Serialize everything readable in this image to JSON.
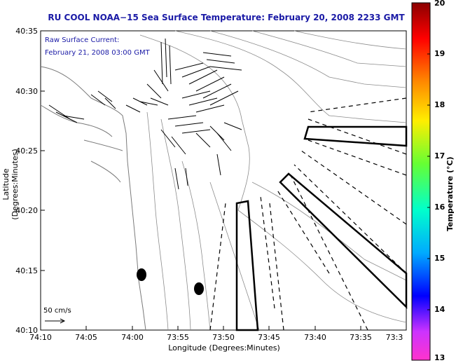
{
  "title": "RU COOL  NOAA−15  Sea Surface Temperature:  February 20, 2008 2233 GMT",
  "legend": {
    "line1": "Raw Surface Current:",
    "line2": "February 21, 2008 03:00 GMT"
  },
  "axes": {
    "y_labels": [
      "40:35",
      "40:30",
      "40:25",
      "40:20",
      "40:15",
      "40:10"
    ],
    "x_labels": [
      "74:10",
      "74:05",
      "74:00",
      "73:55",
      "73:50",
      "73:45",
      "73:40",
      "73:35",
      "73:3"
    ],
    "x_title": "Longitude (Degrees:Minutes)",
    "y_title": "Latitude (Degrees:Minutes)"
  },
  "scale": {
    "label": "50 cm/s"
  },
  "colorbar": {
    "title": "Temperature (°C)",
    "ticks": [
      "20",
      "19",
      "18",
      "17",
      "16",
      "15",
      "14",
      "13"
    ]
  },
  "colors": {
    "title": "#1a1aa6",
    "map_line": "#7a7a7a"
  }
}
